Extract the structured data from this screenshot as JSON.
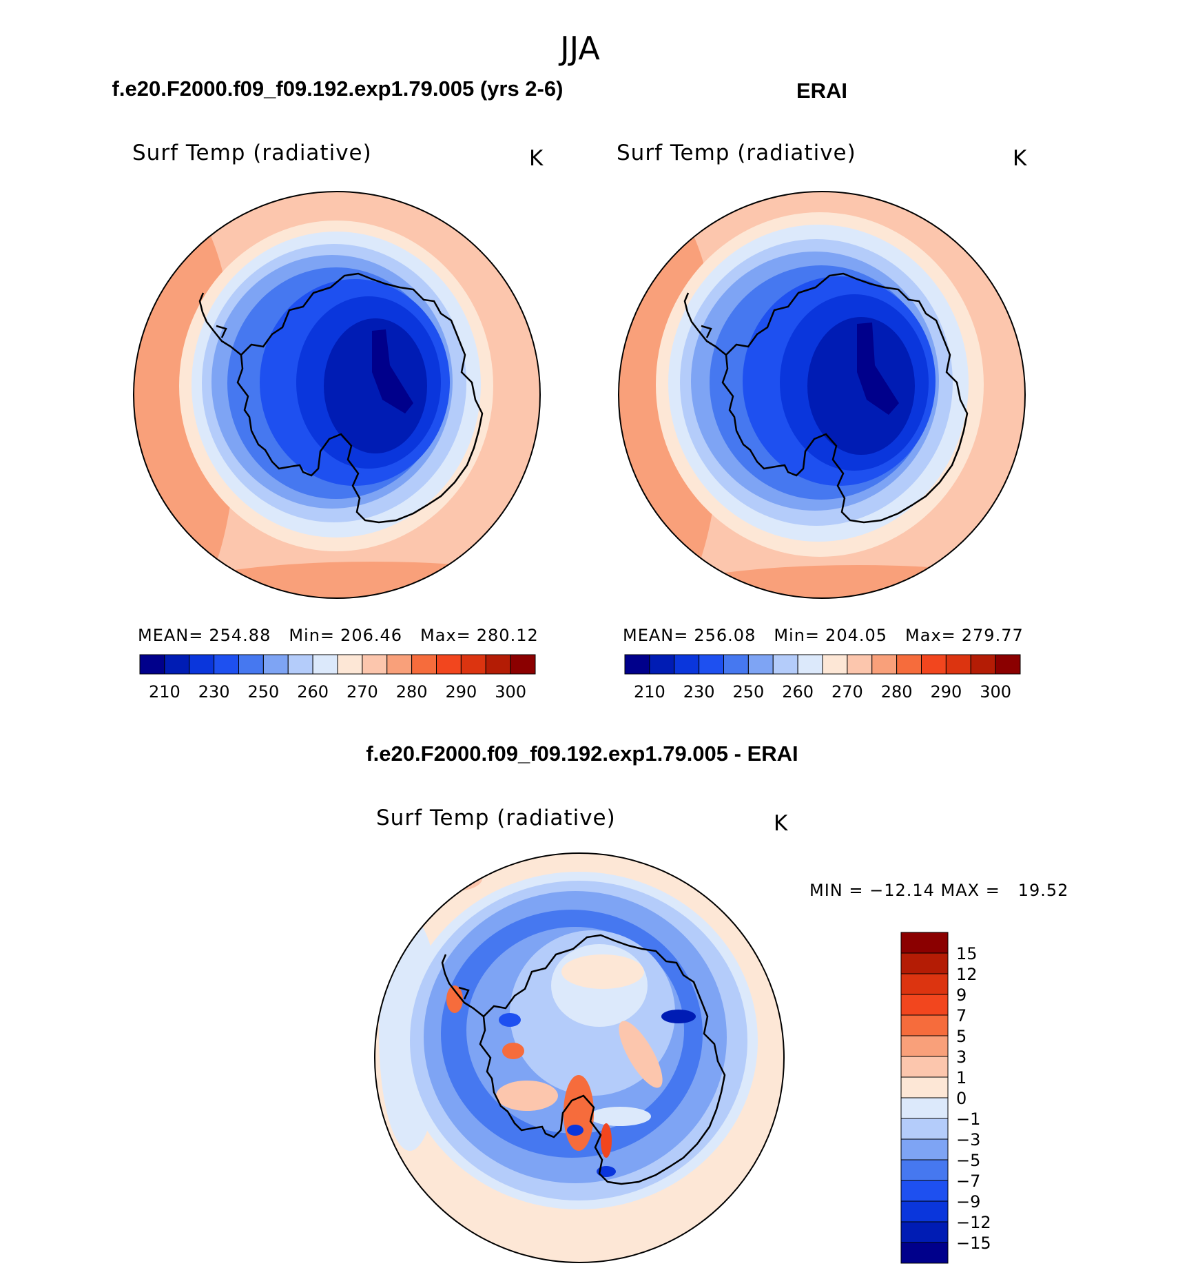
{
  "figure": {
    "super_title": "JJA"
  },
  "panels": [
    {
      "id": "model",
      "title": "f.e20.F2000.f09_f09.192.exp1.79.005 (yrs 2-6)",
      "variable": "Surf Temp (radiative)",
      "units": "K",
      "stats": {
        "mean_label": "MEAN=",
        "mean": "254.88",
        "min_label": "Min=",
        "min": "206.46",
        "max_label": "Max=",
        "max": "280.12"
      }
    },
    {
      "id": "obs",
      "title": "ERAI",
      "variable": "Surf Temp (radiative)",
      "units": "K",
      "stats": {
        "mean_label": "MEAN=",
        "mean": "256.08",
        "min_label": "Min=",
        "min": "204.05",
        "max_label": "Max=",
        "max": "279.77"
      }
    },
    {
      "id": "diff",
      "title": "f.e20.F2000.f09_f09.192.exp1.79.005 - ERAI",
      "variable": "Surf Temp (radiative)",
      "units": "K",
      "stats": {
        "text": "MIN = −12.14 MAX =   19.52"
      }
    }
  ],
  "colorbars": {
    "absolute": {
      "tick_labels": [
        "210",
        "230",
        "250",
        "260",
        "270",
        "280",
        "290",
        "300"
      ],
      "colors": [
        "#00008b",
        "#001cb4",
        "#0a36dc",
        "#1e50f0",
        "#4678f0",
        "#7ea4f4",
        "#b4ccfa",
        "#dce9fb",
        "#fde7d6",
        "#fcc6ad",
        "#f9a07a",
        "#f66c3c",
        "#f2461e",
        "#dc3410",
        "#b41c05",
        "#8b0000"
      ]
    },
    "difference": {
      "tick_labels": [
        "15",
        "12",
        "9",
        "7",
        "5",
        "3",
        "1",
        "0",
        "−1",
        "−3",
        "−5",
        "−7",
        "−9",
        "−12",
        "−15"
      ],
      "colors": [
        "#8b0000",
        "#b41c05",
        "#dc3410",
        "#f2461e",
        "#f66c3c",
        "#f9a07a",
        "#fcc6ad",
        "#fde7d6",
        "#dce9fb",
        "#b4ccfa",
        "#7ea4f4",
        "#4678f0",
        "#1e50f0",
        "#0a36dc",
        "#001cb4",
        "#00008b"
      ]
    }
  }
}
